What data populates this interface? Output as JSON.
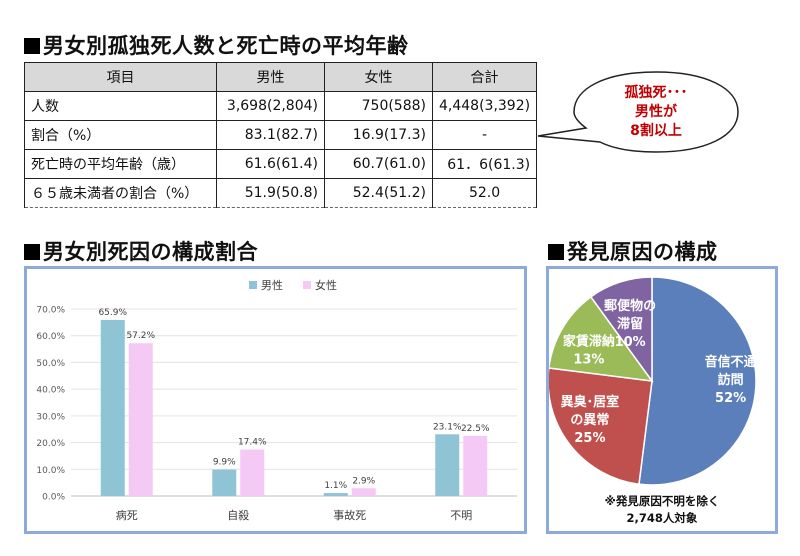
{
  "titles": {
    "table": "男女別孤独死人数と死亡時の平均年齢",
    "bar": "男女別死因の構成割合",
    "pie": "発見原因の構成"
  },
  "table": {
    "headers": [
      "項目",
      "男性",
      "女性",
      "合計"
    ],
    "rows": [
      [
        "人数",
        "3,698(2,804)",
        "750(588)",
        "4,448(3,392)"
      ],
      [
        "割合（%）",
        "83.1(82.7)",
        "16.9(17.3)",
        "-"
      ],
      [
        "死亡時の平均年齢（歳）",
        "61.6(61.4)",
        "60.7(61.0)",
        "61．6(61.3)"
      ],
      [
        "６５歳未満者の割合（%）",
        "51.9(50.8)",
        "52.4(51.2)",
        "52.0"
      ]
    ]
  },
  "callout": {
    "lines": [
      "孤独死･･･",
      "男性が",
      "8割以上"
    ],
    "color": "#c00000"
  },
  "colors": {
    "male": "#8fc3d6",
    "female": "#f5c9f5",
    "panel_border": "#8ea9db"
  },
  "chart_data": [
    {
      "type": "bar",
      "categories": [
        "病死",
        "自殺",
        "事故死",
        "不明"
      ],
      "series": [
        {
          "name": "男性",
          "values": [
            65.9,
            9.9,
            1.1,
            23.1
          ],
          "labels": [
            "65.9%",
            "9.9%",
            "1.1%",
            "23.1%"
          ]
        },
        {
          "name": "女性",
          "values": [
            57.2,
            17.4,
            2.9,
            22.5
          ],
          "labels": [
            "57.2%",
            "17.4%",
            "2.9%",
            "22.5%"
          ]
        }
      ],
      "ylim": [
        0,
        70
      ],
      "yticks": [
        "0.0%",
        "10.0%",
        "20.0%",
        "30.0%",
        "40.0%",
        "50.0%",
        "60.0%",
        "70.0%"
      ],
      "grid": true,
      "legend": "top-center"
    },
    {
      "type": "pie",
      "slices": [
        {
          "lines": [
            "音信不通",
            "訪問",
            "52%"
          ],
          "value": 52,
          "color": "#5b7fba"
        },
        {
          "lines": [
            "異臭･居室",
            "の異常",
            "25%"
          ],
          "value": 25,
          "color": "#c0504d"
        },
        {
          "lines": [
            "家賃滞納",
            "13%"
          ],
          "value": 13,
          "color": "#9bbb59"
        },
        {
          "lines": [
            "郵便物の",
            "滞留",
            "10%"
          ],
          "value": 10,
          "color": "#8064a2"
        }
      ],
      "note": [
        "※発見原因不明を除く",
        "2,748人対象"
      ]
    }
  ]
}
